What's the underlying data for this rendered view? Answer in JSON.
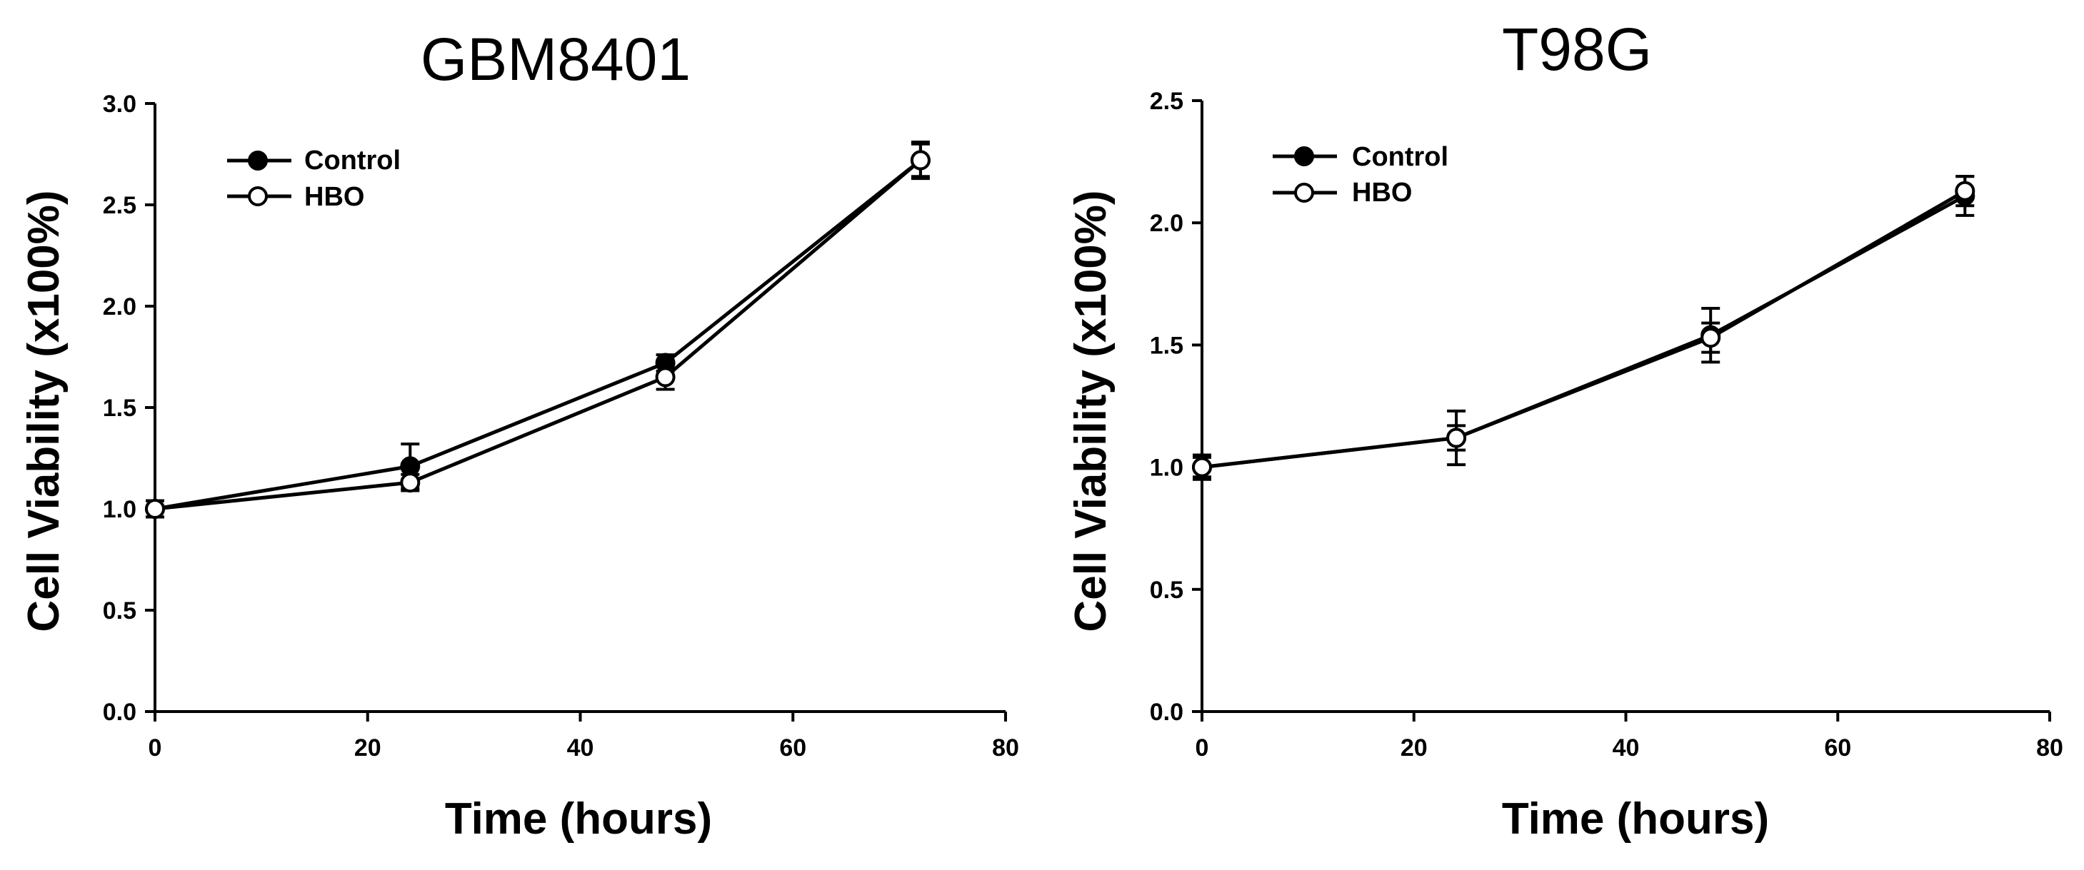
{
  "chart_data": [
    {
      "type": "line",
      "title": "GBM8401",
      "xlabel": "Time (hours)",
      "ylabel": "Cell Viability (x100%)",
      "xlim": [
        0,
        80
      ],
      "ylim": [
        0.0,
        3.0
      ],
      "xticks": [
        0,
        20,
        40,
        60,
        80
      ],
      "xtick_labels": [
        "0",
        "20",
        "40",
        "60",
        "80"
      ],
      "yticks": [
        0,
        0.5,
        1,
        1.5,
        2,
        2.5,
        3
      ],
      "ytick_labels": [
        "0.0",
        "0.5",
        "1.0",
        "1.5",
        "2.0",
        "2.5",
        "3.0"
      ],
      "x": [
        0,
        24,
        48,
        72
      ],
      "legend_position": "top-left",
      "series": [
        {
          "name": "Control",
          "marker": "filled-circle",
          "values": [
            1.0,
            1.21,
            1.72,
            2.72
          ],
          "error": [
            0.04,
            0.11,
            0.04,
            0.08
          ]
        },
        {
          "name": "HBO",
          "marker": "open-circle",
          "values": [
            1.0,
            1.13,
            1.65,
            2.72
          ],
          "error": [
            0.04,
            0.04,
            0.06,
            0.09
          ]
        }
      ],
      "colors": {
        "line": "#000000",
        "open_marker_fill": "#ffffff"
      }
    },
    {
      "type": "line",
      "title": "T98G",
      "xlabel": "Time (hours)",
      "ylabel": "Cell Viability (x100%)",
      "xlim": [
        0,
        80
      ],
      "ylim": [
        0.0,
        2.5
      ],
      "xticks": [
        0,
        20,
        40,
        60,
        80
      ],
      "xtick_labels": [
        "0",
        "20",
        "40",
        "60",
        "80"
      ],
      "yticks": [
        0,
        0.5,
        1,
        1.5,
        2,
        2.5
      ],
      "ytick_labels": [
        "0.0",
        "0.5",
        "1.0",
        "1.5",
        "2.0",
        "2.5"
      ],
      "x": [
        0,
        24,
        48,
        72
      ],
      "legend_position": "top-left",
      "series": [
        {
          "name": "Control",
          "marker": "filled-circle",
          "values": [
            1.0,
            1.12,
            1.54,
            2.11
          ],
          "error": [
            0.05,
            0.11,
            0.11,
            0.08
          ]
        },
        {
          "name": "HBO",
          "marker": "open-circle",
          "values": [
            1.0,
            1.12,
            1.53,
            2.13
          ],
          "error": [
            0.04,
            0.05,
            0.06,
            0.06
          ]
        }
      ],
      "colors": {
        "line": "#000000",
        "open_marker_fill": "#ffffff"
      }
    }
  ]
}
